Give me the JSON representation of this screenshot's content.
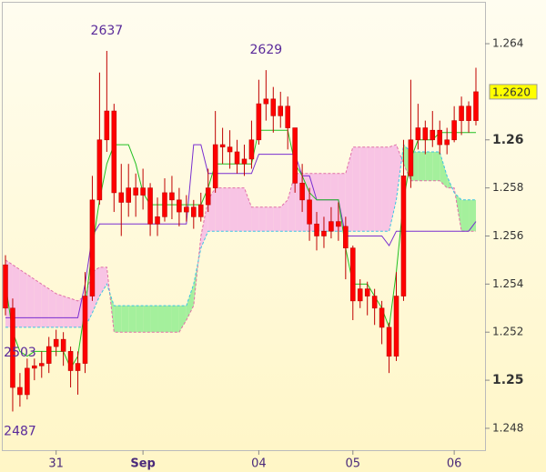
{
  "chart_data": {
    "type": "candlestick",
    "categories": [
      null,
      null,
      null,
      null,
      null,
      null,
      null,
      "31",
      null,
      null,
      null,
      null,
      null,
      null,
      null,
      null,
      null,
      null,
      null,
      "Sep",
      null,
      null,
      null,
      null,
      null,
      null,
      null,
      null,
      null,
      null,
      null,
      null,
      null,
      null,
      null,
      "04",
      null,
      null,
      null,
      null,
      null,
      null,
      null,
      null,
      null,
      null,
      null,
      null,
      "05",
      null,
      null,
      null,
      null,
      null,
      null,
      null,
      null,
      null,
      null,
      null,
      null,
      null,
      "06",
      null,
      null,
      null
    ],
    "open": [
      1.2548,
      1.253,
      1.2497,
      1.2494,
      1.2505,
      1.2506,
      1.2507,
      1.2514,
      1.2517,
      1.2512,
      1.2504,
      1.2507,
      1.2535,
      1.2575,
      1.26,
      1.2612,
      1.2578,
      1.2574,
      1.258,
      1.2577,
      1.258,
      1.2565,
      1.2568,
      1.2578,
      1.2575,
      1.257,
      1.2572,
      1.2568,
      1.2573,
      1.258,
      1.2598,
      1.2597,
      1.2595,
      1.259,
      1.2592,
      1.26,
      1.2615,
      1.2617,
      1.261,
      1.2614,
      1.2605,
      1.2582,
      1.2575,
      1.2565,
      1.256,
      1.2562,
      1.2566,
      1.2564,
      1.2555,
      1.2533,
      1.2538,
      1.2535,
      1.253,
      1.2522,
      1.251,
      1.2535,
      1.2585,
      1.26,
      1.2605,
      1.26,
      1.2604,
      1.2598,
      1.26,
      1.2608,
      1.2614,
      1.2608
    ],
    "high": [
      1.2552,
      1.2534,
      1.2503,
      1.2509,
      1.2509,
      1.2512,
      1.2518,
      1.2521,
      1.252,
      1.2514,
      1.2512,
      1.2545,
      1.2585,
      1.2628,
      1.2637,
      1.2615,
      1.259,
      1.259,
      1.2586,
      1.2588,
      1.2582,
      1.2576,
      1.2584,
      1.2585,
      1.258,
      1.2577,
      1.2575,
      1.2578,
      1.2588,
      1.2612,
      1.2605,
      1.2604,
      1.26,
      1.2598,
      1.2608,
      1.2625,
      1.2629,
      1.2622,
      1.262,
      1.2618,
      1.2605,
      1.259,
      1.258,
      1.257,
      1.2568,
      1.2572,
      1.2574,
      1.2568,
      1.2556,
      1.2542,
      1.2541,
      1.2538,
      1.2533,
      1.2524,
      1.2545,
      1.26,
      1.2625,
      1.2615,
      1.2608,
      1.2612,
      1.2608,
      1.2605,
      1.2614,
      1.2618,
      1.2616,
      1.263
    ],
    "low": [
      1.2527,
      1.2487,
      1.2489,
      1.2492,
      1.25,
      1.2501,
      1.2503,
      1.251,
      1.2506,
      1.2497,
      1.2494,
      1.2503,
      1.2533,
      1.2573,
      1.2595,
      1.257,
      1.256,
      1.2568,
      1.2568,
      1.2571,
      1.256,
      1.256,
      1.2566,
      1.2567,
      1.2564,
      1.2566,
      1.2563,
      1.2566,
      1.257,
      1.2578,
      1.259,
      1.2588,
      1.2586,
      1.2585,
      1.2588,
      1.2598,
      1.2608,
      1.2603,
      1.2605,
      1.2596,
      1.2578,
      1.257,
      1.2558,
      1.2554,
      1.2555,
      1.2559,
      1.2558,
      1.2542,
      1.2525,
      1.253,
      1.2527,
      1.2523,
      1.2515,
      1.2503,
      1.2508,
      1.2533,
      1.258,
      1.2596,
      1.2594,
      1.2597,
      1.2594,
      1.2594,
      1.2599,
      1.2602,
      1.2603,
      1.2606
    ],
    "close": [
      1.253,
      1.2497,
      1.2494,
      1.2505,
      1.2506,
      1.2507,
      1.2514,
      1.2517,
      1.2512,
      1.2504,
      1.2507,
      1.2535,
      1.2575,
      1.26,
      1.2612,
      1.2578,
      1.2574,
      1.258,
      1.2577,
      1.258,
      1.2565,
      1.2568,
      1.2578,
      1.2575,
      1.257,
      1.2572,
      1.2568,
      1.2573,
      1.258,
      1.2598,
      1.2597,
      1.2595,
      1.259,
      1.2592,
      1.26,
      1.2615,
      1.2617,
      1.261,
      1.2614,
      1.2605,
      1.2582,
      1.2575,
      1.2565,
      1.256,
      1.2562,
      1.2566,
      1.2564,
      1.2555,
      1.2533,
      1.2538,
      1.2535,
      1.253,
      1.2522,
      1.251,
      1.2535,
      1.2585,
      1.26,
      1.2605,
      1.26,
      1.2604,
      1.2598,
      1.26,
      1.2608,
      1.2614,
      1.2608,
      1.262
    ],
    "candle_color": "#ff0000",
    "series": [
      {
        "color": "#7a2fd0",
        "values": [
          1.2526,
          1.2526,
          1.2526,
          1.2526,
          1.2526,
          1.2526,
          1.2526,
          1.2526,
          1.2526,
          1.2526,
          1.2526,
          1.254,
          1.256,
          1.2565,
          1.2565,
          1.2565,
          1.2565,
          1.2565,
          1.2565,
          1.2565,
          1.2565,
          1.2565,
          1.2565,
          1.2565,
          1.2565,
          1.2565,
          1.2598,
          1.2598,
          1.2586,
          1.2586,
          1.2586,
          1.2586,
          1.2586,
          1.2586,
          1.2586,
          1.2594,
          1.2594,
          1.2594,
          1.2594,
          1.2594,
          1.2594,
          1.2585,
          1.2585,
          1.2575,
          1.2575,
          1.2575,
          1.2575,
          1.256,
          1.256,
          1.256,
          1.256,
          1.256,
          1.256,
          1.2556,
          1.2562,
          1.2562,
          1.2562,
          1.2562,
          1.2562,
          1.2562,
          1.2562,
          1.2562,
          1.2562,
          1.2562,
          1.2562,
          1.2566
        ]
      },
      {
        "color": "#22c022",
        "values": [
          1.254,
          1.252,
          1.2512,
          1.251,
          1.2512,
          1.2512,
          1.2512,
          1.2512,
          1.2512,
          1.2505,
          1.251,
          1.253,
          1.2555,
          1.2575,
          1.259,
          1.2598,
          1.2598,
          1.2598,
          1.259,
          1.2578,
          1.2573,
          1.2573,
          1.2573,
          1.2573,
          1.2573,
          1.2573,
          1.2573,
          1.2573,
          1.258,
          1.259,
          1.259,
          1.259,
          1.259,
          1.259,
          1.259,
          1.2604,
          1.2604,
          1.2604,
          1.2604,
          1.2604,
          1.259,
          1.2585,
          1.2578,
          1.2575,
          1.2575,
          1.2575,
          1.2575,
          1.2555,
          1.254,
          1.254,
          1.254,
          1.2535,
          1.253,
          1.2522,
          1.2545,
          1.2575,
          1.2592,
          1.26,
          1.26,
          1.26,
          1.2603,
          1.2603,
          1.2603,
          1.2603,
          1.2603,
          1.2603
        ]
      }
    ],
    "cloud": {
      "span_a": {
        "color": "#3cc4e4",
        "values": [
          1.2522,
          1.2522,
          1.2522,
          1.2522,
          1.2522,
          1.2522,
          1.2522,
          1.2522,
          1.2522,
          1.2522,
          1.2522,
          1.2522,
          1.2528,
          1.2535,
          1.254,
          1.2531,
          1.2531,
          1.2531,
          1.2531,
          1.2531,
          1.2531,
          1.2531,
          1.2531,
          1.2531,
          1.2531,
          1.2531,
          1.254,
          1.2555,
          1.2562,
          1.2562,
          1.2562,
          1.2562,
          1.2562,
          1.2562,
          1.2562,
          1.2562,
          1.2562,
          1.2562,
          1.2562,
          1.2562,
          1.2562,
          1.2562,
          1.2562,
          1.2562,
          1.2562,
          1.2562,
          1.2562,
          1.2562,
          1.2562,
          1.2562,
          1.2562,
          1.2562,
          1.2562,
          1.2562,
          1.2575,
          1.2598,
          1.2595,
          1.2595,
          1.2595,
          1.2595,
          1.2595,
          1.2585,
          1.2578,
          1.2575,
          1.2575,
          1.2575
        ]
      },
      "span_b": {
        "color": "#e070a8",
        "values": [
          1.255,
          1.2548,
          1.2546,
          1.2544,
          1.2542,
          1.254,
          1.2538,
          1.2536,
          1.2535,
          1.2534,
          1.2533,
          1.2535,
          1.2545,
          1.2547,
          1.2547,
          1.252,
          1.252,
          1.252,
          1.252,
          1.252,
          1.252,
          1.252,
          1.252,
          1.252,
          1.252,
          1.2525,
          1.2531,
          1.256,
          1.2575,
          1.258,
          1.258,
          1.258,
          1.258,
          1.258,
          1.2572,
          1.2572,
          1.2572,
          1.2572,
          1.2572,
          1.2575,
          1.2586,
          1.2586,
          1.2586,
          1.2586,
          1.2586,
          1.2586,
          1.2586,
          1.2586,
          1.2597,
          1.2597,
          1.2597,
          1.2597,
          1.2597,
          1.2597,
          1.2598,
          1.259,
          1.2583,
          1.2583,
          1.2583,
          1.2583,
          1.2583,
          1.258,
          1.258,
          1.2562,
          1.2562,
          1.2562
        ]
      },
      "up_color": "#a4f09c",
      "down_color": "#f8c4e4"
    },
    "annotations": [
      {
        "label": "2637",
        "value": 1.2637
      },
      {
        "label": "2629",
        "value": 1.2629
      },
      {
        "label": "2503",
        "value": 1.2503
      },
      {
        "label": "2487",
        "value": 1.2487
      }
    ],
    "last_price": {
      "value": 1.262,
      "label": "1.2620"
    },
    "ylim": [
      1.24709,
      1.26525
    ],
    "yticks": [
      1.248,
      1.25,
      1.252,
      1.254,
      1.256,
      1.258,
      1.26,
      1.264
    ]
  }
}
